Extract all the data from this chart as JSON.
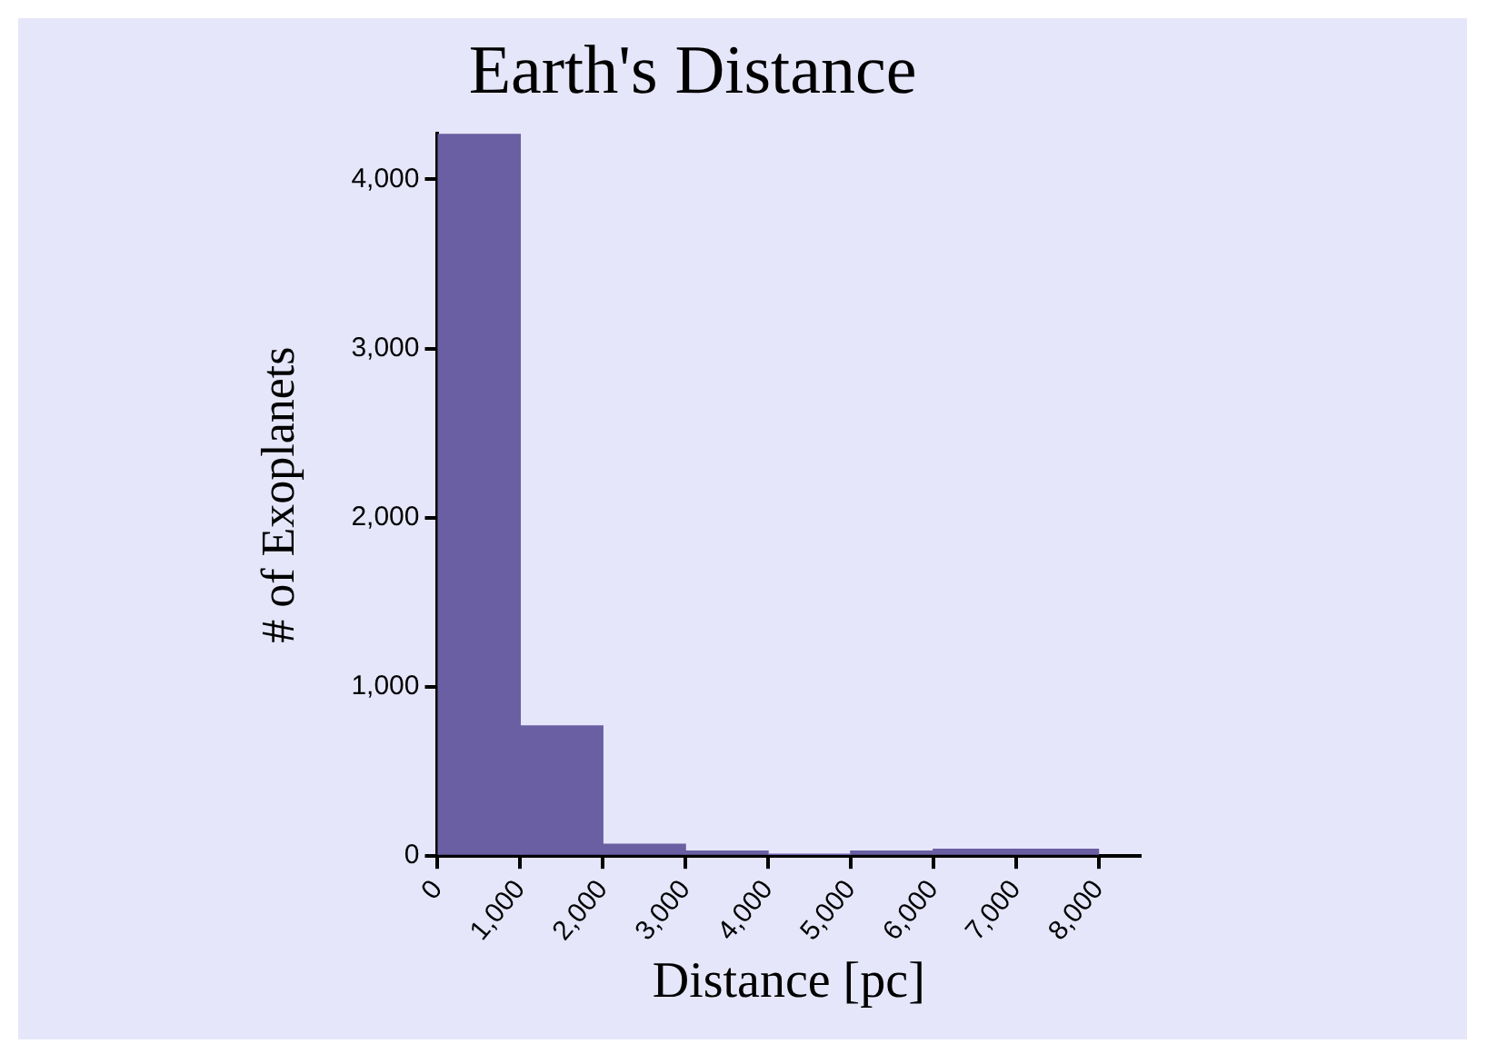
{
  "chart_data": {
    "type": "histogram",
    "title": "Earth's Distance",
    "xlabel": "Distance [pc]",
    "ylabel": "# of Exoplanets",
    "bins": [
      0,
      1000,
      2000,
      3000,
      4000,
      5000,
      6000,
      7000,
      8000
    ],
    "values": [
      4270,
      770,
      70,
      30,
      10,
      30,
      40,
      40
    ],
    "color": "#6b5fa3",
    "xlim": [
      0,
      8500
    ],
    "xticks": [
      0,
      {
        "value": 1000,
        "label": "1,000"
      },
      {
        "value": 2000,
        "label": "2,000"
      },
      {
        "value": 3000,
        "label": "3,000"
      },
      {
        "value": 4000,
        "label": "4,000"
      },
      {
        "value": 5000,
        "label": "5,000"
      },
      {
        "value": 6000,
        "label": "6,000"
      },
      {
        "value": 7000,
        "label": "7,000"
      },
      {
        "value": 8000,
        "label": "8,000"
      }
    ],
    "ylim": [
      0,
      4270
    ],
    "yticks": [
      0,
      {
        "value": 1000,
        "label": "1,000"
      },
      {
        "value": 2000,
        "label": "2,000"
      },
      {
        "value": 3000,
        "label": "3,000"
      },
      {
        "value": 4000,
        "label": "4,000"
      }
    ],
    "grid": false,
    "legend": false
  }
}
